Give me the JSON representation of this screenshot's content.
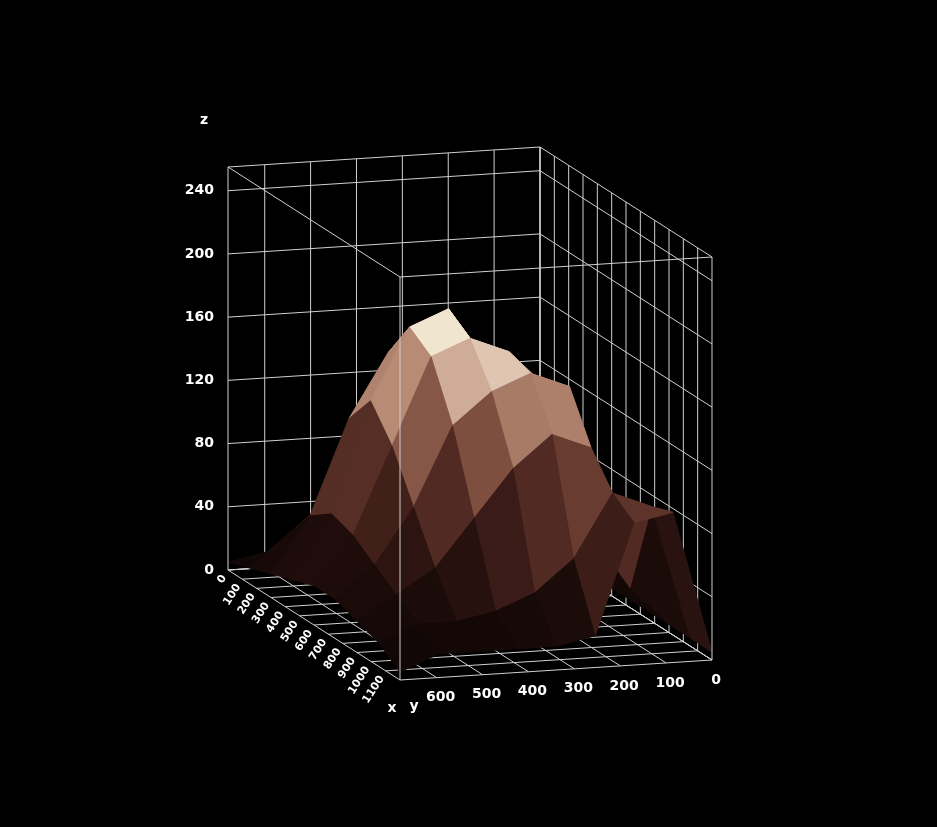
{
  "chart_data": {
    "type": "surface",
    "x_label": "x",
    "y_label": "y",
    "z_label": "z",
    "x": [
      0,
      150,
      300,
      450,
      600,
      750,
      900,
      1050,
      1200
    ],
    "y": [
      0,
      85,
      170,
      255,
      340,
      425,
      510,
      595,
      680
    ],
    "z": [
      [
        5,
        5,
        5,
        5,
        5,
        5,
        5,
        5,
        5
      ],
      [
        5,
        10,
        20,
        30,
        40,
        40,
        30,
        90,
        95
      ],
      [
        10,
        30,
        70,
        110,
        140,
        150,
        120,
        100,
        90
      ],
      [
        10,
        50,
        110,
        150,
        165,
        160,
        130,
        60,
        20
      ],
      [
        15,
        70,
        140,
        185,
        175,
        150,
        110,
        40,
        15
      ],
      [
        15,
        70,
        150,
        175,
        165,
        130,
        80,
        30,
        15
      ],
      [
        15,
        50,
        110,
        130,
        110,
        80,
        50,
        25,
        15
      ],
      [
        10,
        30,
        50,
        60,
        55,
        45,
        35,
        25,
        15
      ],
      [
        5,
        10,
        15,
        20,
        25,
        25,
        20,
        15,
        5
      ]
    ],
    "xlim": [
      0,
      1200
    ],
    "ylim": [
      0,
      680
    ],
    "zlim": [
      0,
      255
    ],
    "xticks": [
      0,
      100,
      200,
      300,
      400,
      500,
      600,
      700,
      800,
      900,
      1000,
      1100
    ],
    "yticks": [
      0,
      100,
      200,
      300,
      400,
      500,
      600
    ],
    "zticks": [
      0,
      40,
      80,
      120,
      160,
      200,
      240
    ],
    "grid": true
  }
}
